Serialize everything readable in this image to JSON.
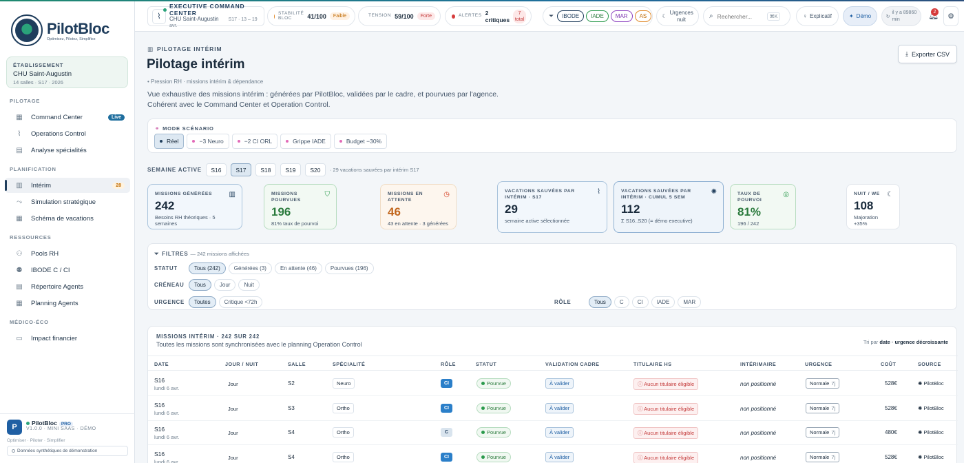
{
  "brand": {
    "name": "PilotBloc",
    "tagline": "Optimisez, Pilotez, Simplifiez"
  },
  "establishment": {
    "label": "ÉTABLISSEMENT",
    "name": "CHU Saint-Augustin",
    "meta": "14 salles · S17 · 2026"
  },
  "nav": {
    "pilotage": {
      "title": "PILOTAGE",
      "items": [
        {
          "label": "Command Center",
          "badge": "Live"
        },
        {
          "label": "Operations Control"
        },
        {
          "label": "Analyse spécialités"
        }
      ]
    },
    "planification": {
      "title": "PLANIFICATION",
      "items": [
        {
          "label": "Intérim",
          "badge": "28"
        },
        {
          "label": "Simulation stratégique"
        },
        {
          "label": "Schéma de vacations"
        }
      ]
    },
    "ressources": {
      "title": "RESSOURCES",
      "items": [
        {
          "label": "Pools RH"
        },
        {
          "label": "IBODE C / CI"
        },
        {
          "label": "Répertoire Agents"
        },
        {
          "label": "Planning Agents"
        }
      ]
    },
    "medico": {
      "title": "MÉDICO-ÉCO",
      "items": [
        {
          "label": "Impact financier"
        }
      ]
    }
  },
  "footer": {
    "avatar": "P",
    "product": "PilotBloc",
    "plan": "PRO",
    "version": "V1.0.0 · MINI SAAS · DÉMO",
    "slogan": "Optimiser · Piloter · Simplifier",
    "demo_note": "Données synthétiques de démonstration"
  },
  "topbar": {
    "exec_title": "EXECUTIVE COMMAND CENTER",
    "exec_site": "CHU Saint-Augustin",
    "exec_week": "S17 · 13 – 19 avr.",
    "stability": {
      "label": "STABILITÉ BLOC",
      "value": "41/100",
      "tag": "Faible"
    },
    "tension": {
      "label": "TENSION",
      "value": "59/100",
      "tag": "Forte"
    },
    "alerts": {
      "label": "ALERTES",
      "value": "2 critiques",
      "tag": "7 total"
    },
    "roles": [
      {
        "label": "IBODE",
        "color": "#1f3d5c"
      },
      {
        "label": "IADE",
        "color": "#2a9a4c"
      },
      {
        "label": "MAR",
        "color": "#8e44c1"
      },
      {
        "label": "AS",
        "color": "#e08a2a"
      }
    ],
    "night": "Urgences nuit",
    "search_placeholder": "Rechercher...",
    "search_kbd": "⌘K",
    "explain": "Explicatif",
    "demo": "Démo",
    "updated": "il y a 89860 min",
    "notif_count": "2"
  },
  "page": {
    "crumb": "PILOTAGE INTÉRIM",
    "title": "Pilotage intérim",
    "subline": "• Pression RH · missions intérim & dépendance",
    "desc1": "Vue exhaustive des missions intérim : générées par PilotBloc, validées par le cadre, et pourvues par l'agence.",
    "desc2": "Cohérent avec le Command Center et Operation Control.",
    "export": "Exporter CSV"
  },
  "scenario": {
    "label": "MODE SCÉNARIO",
    "options": [
      "Réel",
      "−3 Neuro",
      "−2 CI ORL",
      "Grippe IADE",
      "Budget −30%"
    ]
  },
  "week": {
    "label": "SEMAINE ACTIVE",
    "options": [
      "S16",
      "S17",
      "S18",
      "S19",
      "S20"
    ],
    "note": "· 29 vacations sauvées par intérim S17"
  },
  "kpis": [
    {
      "label": "MISSIONS GÉNÉRÉES",
      "value": "242",
      "sub": "Besoins RH théoriques · 5 semaines",
      "icon": "briefcase-icon"
    },
    {
      "label": "MISSIONS POURVUES",
      "value": "196",
      "sub": "81% taux de pourvoi",
      "icon": "shield-check-icon"
    },
    {
      "label": "MISSIONS EN ATTENTE",
      "value": "46",
      "sub": "43 en attente · 3 générées",
      "icon": "clock-icon"
    },
    {
      "label": "VACATIONS SAUVÉES PAR INTÉRIM · S17",
      "value": "29",
      "sub": "semaine active sélectionnée",
      "icon": "pulse-icon"
    },
    {
      "label": "VACATIONS SAUVÉES PAR INTÉRIM · CUMUL 5 SEM",
      "value": "112",
      "sub": "Σ S16..S20 (= démo executive)",
      "icon": "sparkle-icon"
    },
    {
      "label": "TAUX DE POURVOI",
      "value": "81%",
      "sub": "196 / 242",
      "icon": "target-icon"
    },
    {
      "label": "NUIT / WE",
      "value": "108",
      "sub": "Majoration +35%",
      "icon": "moon-icon"
    }
  ],
  "filters": {
    "title": "FILTRES",
    "count": "— 242 missions affichées",
    "statut": {
      "label": "STATUT",
      "options": [
        "Tous (242)",
        "Générées (3)",
        "En attente (46)",
        "Pourvues (196)"
      ]
    },
    "creneau": {
      "label": "CRÉNEAU",
      "options": [
        "Tous",
        "Jour",
        "Nuit"
      ]
    },
    "urgence": {
      "label": "URGENCE",
      "options": [
        "Toutes",
        "Critique <72h"
      ]
    },
    "role": {
      "label": "RÔLE",
      "options": [
        "Tous",
        "C",
        "CI",
        "IADE",
        "MAR"
      ]
    }
  },
  "table": {
    "title": "MISSIONS INTÉRIM · 242 SUR 242",
    "subtitle": "Toutes les missions sont synchronisées avec le planning Operation Control",
    "sort_prefix": "Tri par",
    "sort_value": "date · urgence décroissante",
    "headers": [
      "DATE",
      "JOUR / NUIT",
      "SALLE",
      "SPÉCIALITÉ",
      "RÔLE",
      "STATUT",
      "VALIDATION CADRE",
      "TITULAIRE HS",
      "INTÉRIMAIRE",
      "URGENCE",
      "COÛT",
      "SOURCE"
    ],
    "rows": [
      {
        "week": "S16",
        "date": "lundi 6 avr.",
        "slot": "Jour",
        "room": "S2",
        "spec": "Neuro",
        "role": "CI",
        "status": "Pourvue",
        "validation": "À valider",
        "titular": "Aucun titulaire éligible",
        "interim": "non positionné",
        "urgency": "Normale",
        "urgency_days": "7j",
        "cost": "528€",
        "source": "PilotBloc"
      },
      {
        "week": "S16",
        "date": "lundi 6 avr.",
        "slot": "Jour",
        "room": "S3",
        "spec": "Ortho",
        "role": "CI",
        "status": "Pourvue",
        "validation": "À valider",
        "titular": "Aucun titulaire éligible",
        "interim": "non positionné",
        "urgency": "Normale",
        "urgency_days": "7j",
        "cost": "528€",
        "source": "PilotBloc"
      },
      {
        "week": "S16",
        "date": "lundi 6 avr.",
        "slot": "Jour",
        "room": "S4",
        "spec": "Ortho",
        "role": "C",
        "status": "Pourvue",
        "validation": "À valider",
        "titular": "Aucun titulaire éligible",
        "interim": "non positionné",
        "urgency": "Normale",
        "urgency_days": "7j",
        "cost": "480€",
        "source": "PilotBloc"
      },
      {
        "week": "S16",
        "date": "lundi 6 avr.",
        "slot": "Jour",
        "room": "S4",
        "spec": "Ortho",
        "role": "CI",
        "status": "Pourvue",
        "validation": "À valider",
        "titular": "Aucun titulaire éligible",
        "interim": "non positionné",
        "urgency": "Normale",
        "urgency_days": "7j",
        "cost": "528€",
        "source": "PilotBloc"
      }
    ]
  }
}
